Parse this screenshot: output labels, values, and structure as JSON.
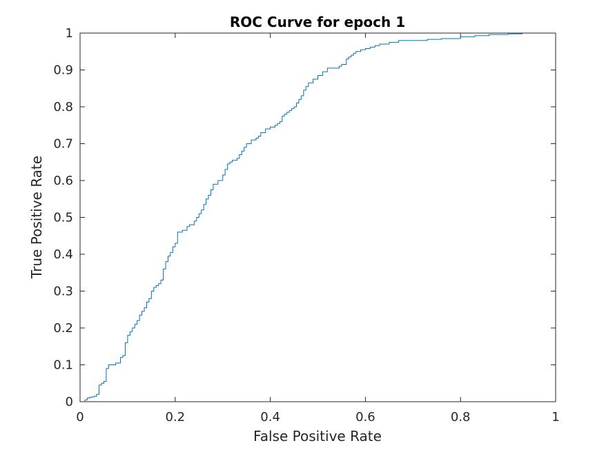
{
  "chart_data": {
    "type": "line",
    "title": "ROC Curve for epoch 1",
    "xlabel": "False Positive Rate",
    "ylabel": "True Positive Rate",
    "xlim": [
      0,
      1
    ],
    "ylim": [
      0,
      1
    ],
    "xticks": [
      "0",
      "0.2",
      "0.4",
      "0.6",
      "0.8",
      "1"
    ],
    "yticks": [
      "0",
      "0.1",
      "0.2",
      "0.3",
      "0.4",
      "0.5",
      "0.6",
      "0.7",
      "0.8",
      "0.9",
      "1"
    ],
    "xtick_values": [
      0,
      0.2,
      0.4,
      0.6,
      0.8,
      1
    ],
    "ytick_values": [
      0,
      0.1,
      0.2,
      0.3,
      0.4,
      0.5,
      0.6,
      0.7,
      0.8,
      0.9,
      1
    ],
    "grid": false,
    "legend": "none",
    "colors": {
      "line": "#0072bd",
      "axes": "#262626",
      "background": "#ffffff"
    },
    "series": [
      {
        "x": [
          0,
          0.01,
          0.015,
          0.02,
          0.025,
          0.03,
          0.035,
          0.04,
          0.04,
          0.045,
          0.045,
          0.05,
          0.055,
          0.055,
          0.06,
          0.06,
          0.065,
          0.075,
          0.085,
          0.09,
          0.095,
          0.095,
          0.1,
          0.1,
          0.105,
          0.105,
          0.11,
          0.115,
          0.12,
          0.125,
          0.13,
          0.135,
          0.14,
          0.145,
          0.15,
          0.15,
          0.155,
          0.16,
          0.165,
          0.17,
          0.175,
          0.175,
          0.18,
          0.18,
          0.185,
          0.19,
          0.195,
          0.2,
          0.205,
          0.205,
          0.215,
          0.225,
          0.23,
          0.24,
          0.245,
          0.25,
          0.255,
          0.26,
          0.265,
          0.27,
          0.275,
          0.28,
          0.29,
          0.3,
          0.305,
          0.31,
          0.315,
          0.32,
          0.33,
          0.335,
          0.34,
          0.345,
          0.35,
          0.36,
          0.365,
          0.37,
          0.375,
          0.38,
          0.39,
          0.4,
          0.41,
          0.415,
          0.42,
          0.425,
          0.43,
          0.435,
          0.44,
          0.445,
          0.45,
          0.455,
          0.46,
          0.465,
          0.47,
          0.475,
          0.48,
          0.49,
          0.5,
          0.51,
          0.52,
          0.535,
          0.545,
          0.55,
          0.56,
          0.565,
          0.57,
          0.575,
          0.58,
          0.59,
          0.6,
          0.61,
          0.62,
          0.63,
          0.65,
          0.67,
          0.7,
          0.73,
          0.76,
          0.8,
          0.83,
          0.86,
          0.9,
          0.93,
          1
        ],
        "y": [
          0,
          0.005,
          0.01,
          0.012,
          0.013,
          0.015,
          0.02,
          0.025,
          0.045,
          0.048,
          0.05,
          0.055,
          0.08,
          0.09,
          0.095,
          0.1,
          0.1,
          0.105,
          0.12,
          0.125,
          0.15,
          0.16,
          0.17,
          0.18,
          0.185,
          0.19,
          0.2,
          0.21,
          0.22,
          0.235,
          0.245,
          0.255,
          0.27,
          0.28,
          0.29,
          0.3,
          0.31,
          0.315,
          0.32,
          0.33,
          0.355,
          0.36,
          0.37,
          0.38,
          0.395,
          0.405,
          0.42,
          0.43,
          0.44,
          0.46,
          0.465,
          0.475,
          0.48,
          0.49,
          0.5,
          0.51,
          0.52,
          0.535,
          0.55,
          0.56,
          0.575,
          0.59,
          0.6,
          0.615,
          0.63,
          0.645,
          0.65,
          0.655,
          0.66,
          0.67,
          0.68,
          0.69,
          0.7,
          0.71,
          0.71,
          0.715,
          0.72,
          0.73,
          0.74,
          0.745,
          0.75,
          0.755,
          0.76,
          0.775,
          0.78,
          0.785,
          0.79,
          0.795,
          0.8,
          0.81,
          0.82,
          0.83,
          0.845,
          0.855,
          0.865,
          0.875,
          0.885,
          0.895,
          0.905,
          0.905,
          0.91,
          0.915,
          0.93,
          0.935,
          0.94,
          0.945,
          0.95,
          0.955,
          0.958,
          0.962,
          0.966,
          0.97,
          0.975,
          0.98,
          0.98,
          0.983,
          0.985,
          0.99,
          0.993,
          0.996,
          0.998,
          1,
          1
        ]
      }
    ]
  }
}
